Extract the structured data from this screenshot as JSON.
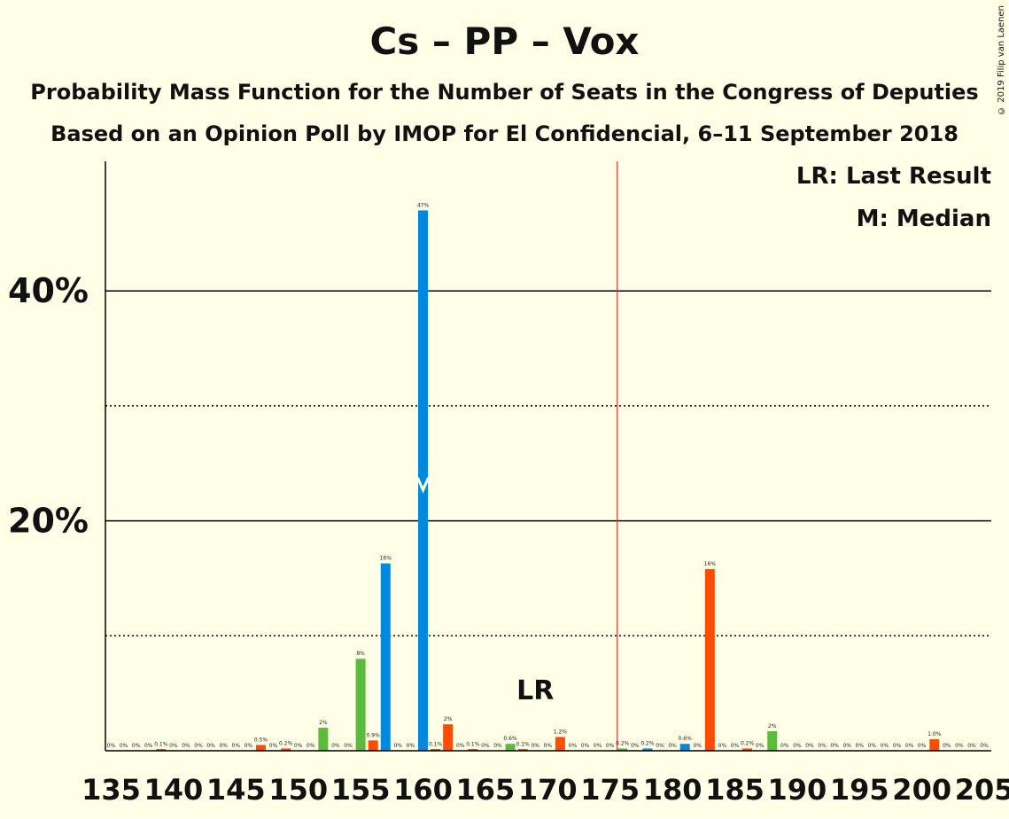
{
  "title": "Cs – PP – Vox",
  "subtitle_1": "Probability Mass Function for the Number of Seats in the Congress of Deputies",
  "subtitle_2": "Based on an Opinion Poll by IMOP for El Confidencial, 6–11 September 2018",
  "copyright": "© 2019 Filip van Laenen",
  "legend": {
    "last_result": "LR: Last Result",
    "median": "M: Median"
  },
  "colors": {
    "background": "#FFFEE6",
    "blue": "#0089DE",
    "orange": "#FF4D00",
    "green": "#5CBB3A",
    "majority_line": "#E03030",
    "axis": "#000000"
  },
  "chart_data": {
    "type": "bar",
    "x_range": [
      135,
      205
    ],
    "ylim": [
      0,
      0.5
    ],
    "y_ticks_major": [
      {
        "value": 0.2,
        "label": "20%"
      },
      {
        "value": 0.4,
        "label": "40%"
      }
    ],
    "y_ticks_minor": [
      0.1,
      0.3
    ],
    "x_ticks": [
      135,
      140,
      145,
      150,
      155,
      160,
      165,
      170,
      175,
      180,
      185,
      190,
      195,
      200,
      205
    ],
    "majority_line": 176,
    "last_result": {
      "x": 169,
      "label": "LR"
    },
    "median": {
      "x": 160,
      "label": "M"
    },
    "bars": [
      {
        "x": 135,
        "value": 0,
        "label": "0%",
        "color": "green"
      },
      {
        "x": 136,
        "value": 0,
        "label": "0%",
        "color": "orange"
      },
      {
        "x": 137,
        "value": 0,
        "label": "0%",
        "color": "orange"
      },
      {
        "x": 138,
        "value": 0,
        "label": "0%",
        "color": "orange"
      },
      {
        "x": 139,
        "value": 0.001,
        "label": "0.1%",
        "color": "orange"
      },
      {
        "x": 140,
        "value": 0,
        "label": "0%",
        "color": "orange"
      },
      {
        "x": 141,
        "value": 0,
        "label": "0%",
        "color": "orange"
      },
      {
        "x": 142,
        "value": 0,
        "label": "0%",
        "color": "orange"
      },
      {
        "x": 143,
        "value": 0,
        "label": "0%",
        "color": "orange"
      },
      {
        "x": 144,
        "value": 0,
        "label": "0%",
        "color": "orange"
      },
      {
        "x": 145,
        "value": 0,
        "label": "0%",
        "color": "orange"
      },
      {
        "x": 146,
        "value": 0,
        "label": "0%",
        "color": "orange"
      },
      {
        "x": 147,
        "value": 0.005,
        "label": "0.5%",
        "color": "orange"
      },
      {
        "x": 148,
        "value": 0,
        "label": "0%",
        "color": "orange"
      },
      {
        "x": 149,
        "value": 0.002,
        "label": "0.2%",
        "color": "orange"
      },
      {
        "x": 150,
        "value": 0,
        "label": "0%",
        "color": "orange"
      },
      {
        "x": 151,
        "value": 0,
        "label": "0%",
        "color": "orange"
      },
      {
        "x": 152,
        "value": 0.02,
        "label": "2%",
        "color": "green"
      },
      {
        "x": 153,
        "value": 0,
        "label": "0%",
        "color": "orange"
      },
      {
        "x": 154,
        "value": 0,
        "label": "0%",
        "color": "orange"
      },
      {
        "x": 155,
        "value": 0.08,
        "label": "8%",
        "color": "green"
      },
      {
        "x": 156,
        "value": 0.009,
        "label": "0.9%",
        "color": "orange"
      },
      {
        "x": 157,
        "value": 0.163,
        "label": "16%",
        "color": "blue"
      },
      {
        "x": 158,
        "value": 0,
        "label": "0%",
        "color": "orange"
      },
      {
        "x": 159,
        "value": 0,
        "label": "0%",
        "color": "orange"
      },
      {
        "x": 160,
        "value": 0.47,
        "label": "47%",
        "color": "blue"
      },
      {
        "x": 161,
        "value": 0.001,
        "label": "0.1%",
        "color": "orange"
      },
      {
        "x": 162,
        "value": 0.023,
        "label": "2%",
        "color": "orange"
      },
      {
        "x": 163,
        "value": 0,
        "label": "0%",
        "color": "orange"
      },
      {
        "x": 164,
        "value": 0.001,
        "label": "0.1%",
        "color": "orange"
      },
      {
        "x": 165,
        "value": 0,
        "label": "0%",
        "color": "orange"
      },
      {
        "x": 166,
        "value": 0,
        "label": "0%",
        "color": "orange"
      },
      {
        "x": 167,
        "value": 0.006,
        "label": "0.6%",
        "color": "green"
      },
      {
        "x": 168,
        "value": 0.001,
        "label": "0.1%",
        "color": "orange"
      },
      {
        "x": 169,
        "value": 0,
        "label": "0%",
        "color": "orange"
      },
      {
        "x": 170,
        "value": 0,
        "label": "0%",
        "color": "orange"
      },
      {
        "x": 171,
        "value": 0.012,
        "label": "1.2%",
        "color": "orange"
      },
      {
        "x": 172,
        "value": 0,
        "label": "0%",
        "color": "orange"
      },
      {
        "x": 173,
        "value": 0,
        "label": "0%",
        "color": "orange"
      },
      {
        "x": 174,
        "value": 0,
        "label": "0%",
        "color": "orange"
      },
      {
        "x": 175,
        "value": 0,
        "label": "0%",
        "color": "orange"
      },
      {
        "x": 176,
        "value": 0.002,
        "label": "0.2%",
        "color": "green"
      },
      {
        "x": 177,
        "value": 0,
        "label": "0%",
        "color": "orange"
      },
      {
        "x": 178,
        "value": 0.002,
        "label": "0.2%",
        "color": "blue"
      },
      {
        "x": 179,
        "value": 0,
        "label": "0%",
        "color": "orange"
      },
      {
        "x": 180,
        "value": 0,
        "label": "0%",
        "color": "orange"
      },
      {
        "x": 181,
        "value": 0.006,
        "label": "0.6%",
        "color": "blue"
      },
      {
        "x": 182,
        "value": 0,
        "label": "0%",
        "color": "orange"
      },
      {
        "x": 183,
        "value": 0.158,
        "label": "16%",
        "color": "orange"
      },
      {
        "x": 184,
        "value": 0,
        "label": "0%",
        "color": "orange"
      },
      {
        "x": 185,
        "value": 0,
        "label": "0%",
        "color": "orange"
      },
      {
        "x": 186,
        "value": 0.002,
        "label": "0.2%",
        "color": "orange"
      },
      {
        "x": 187,
        "value": 0,
        "label": "0%",
        "color": "orange"
      },
      {
        "x": 188,
        "value": 0.017,
        "label": "2%",
        "color": "green"
      },
      {
        "x": 189,
        "value": 0,
        "label": "0%",
        "color": "orange"
      },
      {
        "x": 190,
        "value": 0,
        "label": "0%",
        "color": "orange"
      },
      {
        "x": 191,
        "value": 0,
        "label": "0%",
        "color": "orange"
      },
      {
        "x": 192,
        "value": 0,
        "label": "0%",
        "color": "orange"
      },
      {
        "x": 193,
        "value": 0,
        "label": "0%",
        "color": "orange"
      },
      {
        "x": 194,
        "value": 0,
        "label": "0%",
        "color": "orange"
      },
      {
        "x": 195,
        "value": 0,
        "label": "0%",
        "color": "orange"
      },
      {
        "x": 196,
        "value": 0,
        "label": "0%",
        "color": "orange"
      },
      {
        "x": 197,
        "value": 0,
        "label": "0%",
        "color": "orange"
      },
      {
        "x": 198,
        "value": 0,
        "label": "0%",
        "color": "orange"
      },
      {
        "x": 199,
        "value": 0,
        "label": "0%",
        "color": "orange"
      },
      {
        "x": 200,
        "value": 0,
        "label": "0%",
        "color": "orange"
      },
      {
        "x": 201,
        "value": 0.01,
        "label": "1.0%",
        "color": "orange"
      },
      {
        "x": 202,
        "value": 0,
        "label": "0%",
        "color": "orange"
      },
      {
        "x": 203,
        "value": 0,
        "label": "0%",
        "color": "orange"
      },
      {
        "x": 204,
        "value": 0,
        "label": "0%",
        "color": "orange"
      },
      {
        "x": 205,
        "value": 0,
        "label": "0%",
        "color": "orange"
      }
    ]
  }
}
